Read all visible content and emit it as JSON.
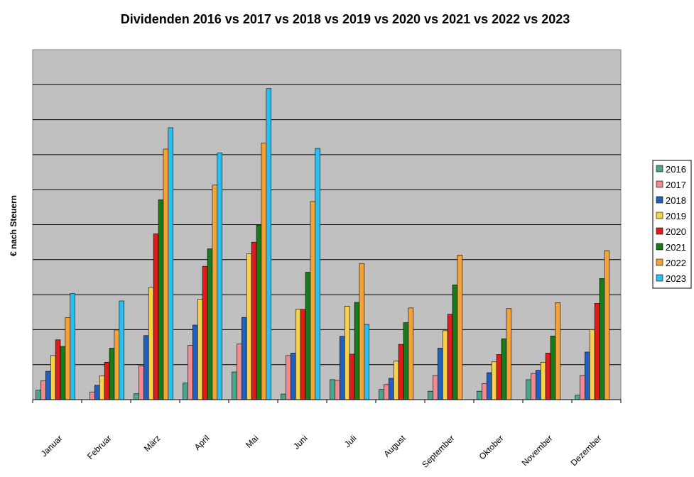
{
  "chart_data": {
    "type": "bar",
    "title": "Dividenden 2016 vs 2017 vs 2018 vs 2019 vs 2020 vs 2021 vs 2022 vs 2023",
    "xlabel": "",
    "ylabel": "€ nach Steuern",
    "ylim": [
      0,
      10
    ],
    "grid": true,
    "legend_position": "right",
    "categories": [
      "Januar",
      "Februar",
      "März",
      "April",
      "Mai",
      "Juni",
      "Juli",
      "August",
      "September",
      "Oktober",
      "November",
      "Dezember"
    ],
    "series": [
      {
        "name": "2016",
        "color": "#4aa58e",
        "values": [
          0.27,
          0,
          0.17,
          0.48,
          0.79,
          0.16,
          0.57,
          0.29,
          0.24,
          0.24,
          0.57,
          0.13
        ]
      },
      {
        "name": "2017",
        "color": "#f08a8e",
        "values": [
          0.54,
          0.22,
          0.97,
          1.55,
          1.59,
          1.26,
          0.55,
          0.43,
          0.69,
          0.46,
          0.75,
          0.69
        ]
      },
      {
        "name": "2018",
        "color": "#1f5fbf",
        "values": [
          0.81,
          0.41,
          1.83,
          2.13,
          2.35,
          1.33,
          1.81,
          0.61,
          1.47,
          0.77,
          0.84,
          1.36
        ]
      },
      {
        "name": "2019",
        "color": "#f7d14a",
        "values": [
          1.26,
          0.68,
          3.21,
          2.87,
          4.17,
          2.58,
          2.67,
          1.1,
          1.97,
          1.08,
          1.07,
          2.0
        ]
      },
      {
        "name": "2020",
        "color": "#e01b1b",
        "values": [
          1.71,
          1.07,
          4.74,
          3.81,
          4.5,
          2.58,
          1.3,
          1.58,
          2.44,
          1.29,
          1.33,
          2.75
        ]
      },
      {
        "name": "2021",
        "color": "#197a19",
        "values": [
          1.52,
          1.47,
          5.71,
          4.31,
          4.98,
          3.64,
          2.78,
          2.2,
          3.28,
          1.74,
          1.82,
          3.46
        ]
      },
      {
        "name": "2022",
        "color": "#f5a236",
        "values": [
          2.34,
          1.99,
          7.16,
          6.13,
          7.33,
          5.66,
          3.89,
          2.62,
          4.13,
          2.6,
          2.77,
          4.26
        ]
      },
      {
        "name": "2023",
        "color": "#29c0ef",
        "values": [
          3.03,
          2.82,
          7.77,
          7.05,
          8.89,
          7.18,
          2.15,
          0,
          0,
          0,
          0,
          0
        ]
      }
    ]
  }
}
